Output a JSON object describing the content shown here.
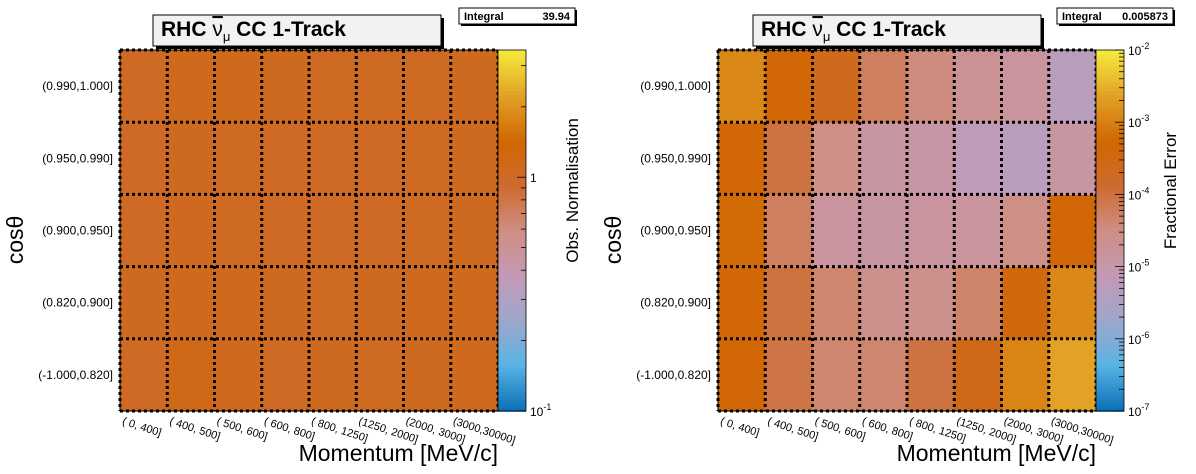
{
  "palette": [
    "#0c71b8",
    "#5ab4e4",
    "#9ea7cc",
    "#c499b6",
    "#ce8f84",
    "#cd6b30",
    "#d16703",
    "#e19f25",
    "#f3e73b"
  ],
  "chart_data": [
    {
      "type": "heatmap",
      "title_prefix": "RHC ",
      "title_nu": "ν",
      "title_sub": "μ",
      "title_suffix": " CC 1-Track",
      "stats_label": "Integral",
      "stats_value": "39.94",
      "xlabel": "Momentum [MeV/c]",
      "ylabel_main": "cos",
      "ylabel_greek": "θ",
      "zlabel": "Obs. Normalisation",
      "zscale": "log",
      "zlim": [
        0.1,
        3.5
      ],
      "x_categories": [
        "(   0,  400]",
        "(  400,  500]",
        "(  500,  600]",
        "(  600,  800]",
        "(  800, 1250]",
        "(1250, 2000]",
        "(2000, 3000]",
        "(3000,30000]"
      ],
      "y_categories": [
        "(-1.000,0.820]",
        "(0.820,0.900]",
        "(0.900,0.950]",
        "(0.950,0.990]",
        "(0.990,1.000]"
      ],
      "color_ticks": [
        {
          "value": 0.1,
          "mant": "10",
          "exp": "-1"
        },
        {
          "value": 1,
          "mant": "1",
          "exp": ""
        }
      ],
      "values": [
        [
          1.05,
          1.18,
          1.1,
          1.05,
          1.08,
          1.06,
          1.08,
          1.1
        ],
        [
          1.08,
          1.12,
          1.1,
          1.08,
          1.06,
          1.08,
          1.1,
          1.12
        ],
        [
          1.04,
          1.09,
          1.07,
          1.05,
          1.05,
          1.04,
          1.06,
          1.08
        ],
        [
          1.02,
          1.08,
          1.07,
          1.05,
          1.04,
          1.05,
          1.06,
          1.08
        ],
        [
          1.04,
          1.14,
          1.12,
          1.08,
          1.06,
          1.06,
          1.06,
          1.08
        ]
      ]
    },
    {
      "type": "heatmap",
      "title_prefix": "RHC ",
      "title_nu": "ν",
      "title_sub": "μ",
      "title_suffix": " CC 1-Track",
      "stats_label": "Integral",
      "stats_value": "0.005873",
      "xlabel": "Momentum [MeV/c]",
      "ylabel_main": "cos",
      "ylabel_greek": "θ",
      "zlabel": "Fractional Error",
      "zscale": "log",
      "zlim": [
        1e-07,
        0.01
      ],
      "x_categories": [
        "(   0,  400]",
        "(  400,  500]",
        "(  500,  600]",
        "(  600,  800]",
        "(  800, 1250]",
        "(1250, 2000]",
        "(2000, 3000]",
        "(3000,30000]"
      ],
      "y_categories": [
        "(-1.000,0.820]",
        "(0.820,0.900]",
        "(0.900,0.950]",
        "(0.950,0.990]",
        "(0.990,1.000]"
      ],
      "color_ticks": [
        {
          "value": 1e-07,
          "mant": "10",
          "exp": "-7"
        },
        {
          "value": 1e-06,
          "mant": "10",
          "exp": "-6"
        },
        {
          "value": 1e-05,
          "mant": "10",
          "exp": "-5"
        },
        {
          "value": 0.0001,
          "mant": "10",
          "exp": "-4"
        },
        {
          "value": 0.001,
          "mant": "10",
          "exp": "-3"
        },
        {
          "value": 0.01,
          "mant": "10",
          "exp": "-2"
        }
      ],
      "values": [
        [
          0.0005,
          9e-05,
          4.5e-05,
          4.5e-05,
          0.0001,
          0.0003,
          0.0012,
          0.0025
        ],
        [
          0.0005,
          0.0001,
          4.5e-05,
          2.5e-05,
          2.5e-05,
          5e-05,
          0.0004,
          0.0013
        ],
        [
          0.0006,
          6e-05,
          1.5e-05,
          1.3e-05,
          1.5e-05,
          1.6e-05,
          3e-05,
          0.0005
        ],
        [
          0.0005,
          0.0001,
          3e-05,
          1.3e-05,
          1.2e-05,
          6e-06,
          5e-06,
          1.3e-05
        ],
        [
          0.0013,
          0.0005,
          0.00025,
          6e-05,
          3.5e-05,
          2e-05,
          1.5e-05,
          5e-06
        ]
      ]
    }
  ]
}
